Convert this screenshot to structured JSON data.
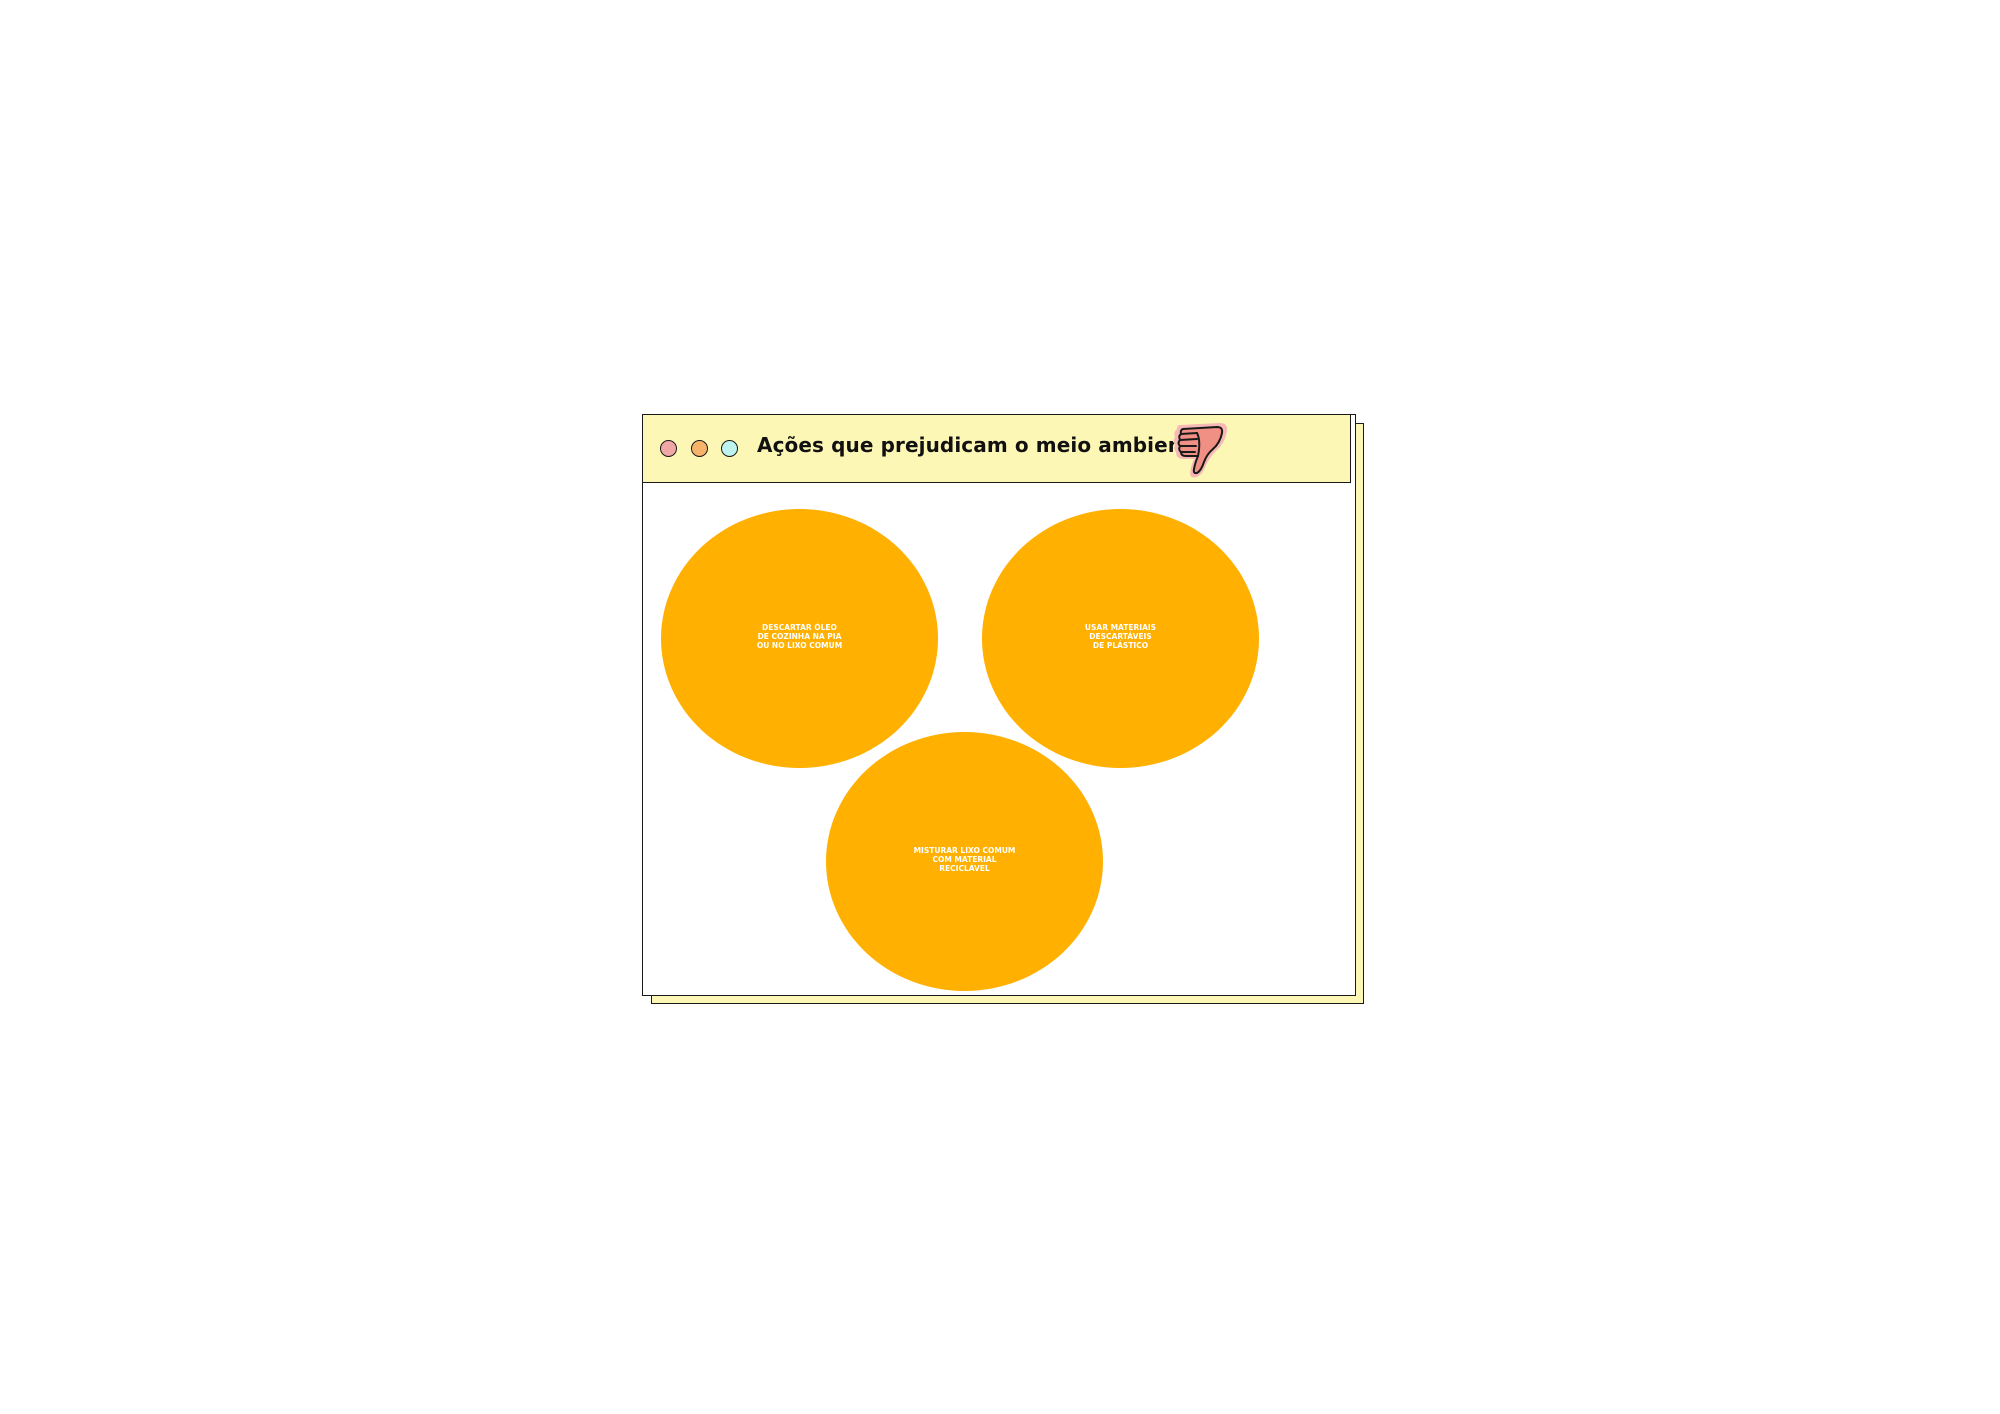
{
  "window": {
    "title": "Ações que prejudicam o meio ambiente",
    "title_bar_color": "#fdf7b5",
    "dots": [
      {
        "name": "red-dot",
        "color": "#f2a7a7"
      },
      {
        "name": "orange-dot",
        "color": "#f7b36a"
      },
      {
        "name": "cyan-dot",
        "color": "#bff3ee"
      }
    ],
    "icon": "thumbs-down-icon"
  },
  "bubbles": [
    {
      "text": "DESCARTAR ÓLEO\nDE COZINHA NA PIA\nOU NO LIXO COMUM",
      "color": "#ffb000"
    },
    {
      "text": "USAR MATERIAIS\nDESCARTÁVEIS\nDE PLÁSTICO",
      "color": "#ffb000"
    },
    {
      "text": "MISTURAR LIXO COMUM\nCOM MATERIAL\nRECICLÁVEL",
      "color": "#ffb000"
    }
  ]
}
